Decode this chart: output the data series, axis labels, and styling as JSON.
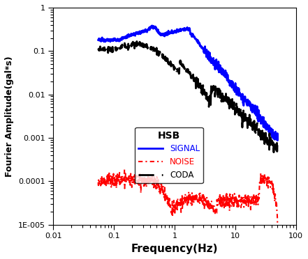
{
  "title": "",
  "xlabel": "Frequency(Hz)",
  "ylabel": "Fourier Amplitude(gal*s)",
  "xlim": [
    0.01,
    100
  ],
  "ylim": [
    1e-05,
    1
  ],
  "legend_title": "HSB",
  "legend_labels": [
    "SIGNAL",
    "NOISE",
    "CODA"
  ],
  "signal_color": "blue",
  "noise_color": "red",
  "coda_color": "black",
  "background_color": "white",
  "ytick_labels": [
    "1E-005",
    "0.0001",
    "0.001",
    "0.01",
    "0.1",
    "1"
  ],
  "xtick_labels": [
    "0.01",
    "0.1",
    "1",
    "10",
    "100"
  ],
  "figsize": [
    4.41,
    3.72
  ],
  "dpi": 100
}
